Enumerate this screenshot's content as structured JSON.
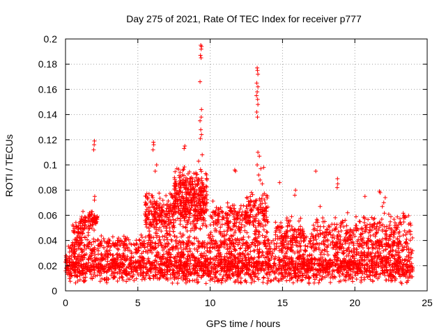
{
  "chart_data": {
    "type": "scatter",
    "title": "Day 275 of 2021, Rate Of TEC Index for receiver p777",
    "xlabel": "GPS time / hours",
    "ylabel": "ROTI / TECUs",
    "xlim": [
      0,
      25
    ],
    "ylim": [
      0,
      0.2
    ],
    "x_ticks": [
      "0",
      "5",
      "10",
      "15",
      "20",
      "25"
    ],
    "y_ticks": [
      "0",
      "0.02",
      "0.04",
      "0.06",
      "0.08",
      "0.1",
      "0.12",
      "0.14",
      "0.16",
      "0.18",
      "0.2"
    ],
    "grid": true,
    "marker": "+",
    "color": "#ff0000",
    "clusters": [
      {
        "x_range": [
          0.0,
          24.0
        ],
        "y_range": [
          0.005,
          0.035
        ],
        "count": 2400
      },
      {
        "x_range": [
          0.2,
          23.8
        ],
        "y_range": [
          0.03,
          0.045
        ],
        "count": 700
      },
      {
        "x_range": [
          0.5,
          1.2
        ],
        "y_range": [
          0.04,
          0.055
        ],
        "count": 40
      },
      {
        "x_range": [
          1.0,
          2.2
        ],
        "y_range": [
          0.045,
          0.065
        ],
        "count": 90
      },
      {
        "x_range": [
          5.5,
          7.5
        ],
        "y_range": [
          0.04,
          0.08
        ],
        "count": 220
      },
      {
        "x_range": [
          7.5,
          9.8
        ],
        "y_range": [
          0.045,
          0.1
        ],
        "count": 420
      },
      {
        "x_range": [
          10.0,
          12.5
        ],
        "y_range": [
          0.04,
          0.075
        ],
        "count": 160
      },
      {
        "x_range": [
          12.5,
          14.0
        ],
        "y_range": [
          0.04,
          0.08
        ],
        "count": 140
      },
      {
        "x_range": [
          14.5,
          16.5
        ],
        "y_range": [
          0.035,
          0.06
        ],
        "count": 90
      },
      {
        "x_range": [
          17.0,
          20.0
        ],
        "y_range": [
          0.035,
          0.06
        ],
        "count": 90
      },
      {
        "x_range": [
          20.0,
          24.0
        ],
        "y_range": [
          0.035,
          0.065
        ],
        "count": 140
      }
    ],
    "outliers": [
      {
        "x": 1.95,
        "y": 0.112
      },
      {
        "x": 1.98,
        "y": 0.116
      },
      {
        "x": 2.0,
        "y": 0.119
      },
      {
        "x": 2.02,
        "y": 0.075
      },
      {
        "x": 2.0,
        "y": 0.072
      },
      {
        "x": 6.05,
        "y": 0.112
      },
      {
        "x": 6.1,
        "y": 0.116
      },
      {
        "x": 6.08,
        "y": 0.118
      },
      {
        "x": 6.3,
        "y": 0.1
      },
      {
        "x": 6.2,
        "y": 0.095
      },
      {
        "x": 8.2,
        "y": 0.113
      },
      {
        "x": 8.25,
        "y": 0.115
      },
      {
        "x": 9.35,
        "y": 0.195
      },
      {
        "x": 9.4,
        "y": 0.194
      },
      {
        "x": 9.38,
        "y": 0.192
      },
      {
        "x": 9.33,
        "y": 0.187
      },
      {
        "x": 9.37,
        "y": 0.185
      },
      {
        "x": 9.3,
        "y": 0.166
      },
      {
        "x": 9.4,
        "y": 0.144
      },
      {
        "x": 9.38,
        "y": 0.138
      },
      {
        "x": 9.3,
        "y": 0.135
      },
      {
        "x": 9.35,
        "y": 0.128
      },
      {
        "x": 9.4,
        "y": 0.124
      },
      {
        "x": 9.33,
        "y": 0.121
      },
      {
        "x": 9.45,
        "y": 0.108
      },
      {
        "x": 9.2,
        "y": 0.103
      },
      {
        "x": 11.7,
        "y": 0.096
      },
      {
        "x": 11.75,
        "y": 0.095
      },
      {
        "x": 13.25,
        "y": 0.177
      },
      {
        "x": 13.27,
        "y": 0.175
      },
      {
        "x": 13.3,
        "y": 0.172
      },
      {
        "x": 13.22,
        "y": 0.165
      },
      {
        "x": 13.3,
        "y": 0.162
      },
      {
        "x": 13.25,
        "y": 0.158
      },
      {
        "x": 13.2,
        "y": 0.155
      },
      {
        "x": 13.28,
        "y": 0.152
      },
      {
        "x": 13.3,
        "y": 0.148
      },
      {
        "x": 13.22,
        "y": 0.142
      },
      {
        "x": 13.27,
        "y": 0.138
      },
      {
        "x": 13.3,
        "y": 0.11
      },
      {
        "x": 13.4,
        "y": 0.107
      },
      {
        "x": 13.25,
        "y": 0.1
      },
      {
        "x": 13.5,
        "y": 0.097
      },
      {
        "x": 13.35,
        "y": 0.092
      },
      {
        "x": 13.45,
        "y": 0.088
      },
      {
        "x": 13.7,
        "y": 0.098
      },
      {
        "x": 13.6,
        "y": 0.085
      },
      {
        "x": 14.8,
        "y": 0.086
      },
      {
        "x": 15.9,
        "y": 0.08
      },
      {
        "x": 15.85,
        "y": 0.076
      },
      {
        "x": 17.3,
        "y": 0.095
      },
      {
        "x": 17.6,
        "y": 0.067
      },
      {
        "x": 18.8,
        "y": 0.089
      },
      {
        "x": 18.82,
        "y": 0.085
      },
      {
        "x": 18.78,
        "y": 0.082
      },
      {
        "x": 19.5,
        "y": 0.062
      },
      {
        "x": 20.7,
        "y": 0.075
      },
      {
        "x": 21.7,
        "y": 0.079
      },
      {
        "x": 21.75,
        "y": 0.078
      },
      {
        "x": 22.1,
        "y": 0.074
      },
      {
        "x": 22.0,
        "y": 0.07
      },
      {
        "x": 21.9,
        "y": 0.067
      },
      {
        "x": 23.4,
        "y": 0.06
      },
      {
        "x": 23.5,
        "y": 0.059
      }
    ]
  }
}
